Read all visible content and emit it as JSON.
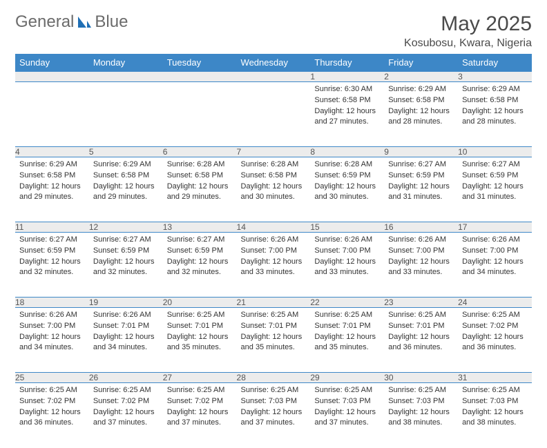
{
  "brand": {
    "part1": "General",
    "part2": "Blue"
  },
  "title": "May 2025",
  "location": "Kosubosu, Kwara, Nigeria",
  "colors": {
    "header_bg": "#3d87c7",
    "header_text": "#ffffff",
    "daynum_bg": "#ececec",
    "border": "#3d87c7",
    "logo_accent": "#1f6fb5"
  },
  "day_headers": [
    "Sunday",
    "Monday",
    "Tuesday",
    "Wednesday",
    "Thursday",
    "Friday",
    "Saturday"
  ],
  "first_day_index": 4,
  "days_in_month": 31,
  "cells": {
    "1": {
      "sunrise": "6:30 AM",
      "sunset": "6:58 PM",
      "daylight": "12 hours and 27 minutes."
    },
    "2": {
      "sunrise": "6:29 AM",
      "sunset": "6:58 PM",
      "daylight": "12 hours and 28 minutes."
    },
    "3": {
      "sunrise": "6:29 AM",
      "sunset": "6:58 PM",
      "daylight": "12 hours and 28 minutes."
    },
    "4": {
      "sunrise": "6:29 AM",
      "sunset": "6:58 PM",
      "daylight": "12 hours and 29 minutes."
    },
    "5": {
      "sunrise": "6:29 AM",
      "sunset": "6:58 PM",
      "daylight": "12 hours and 29 minutes."
    },
    "6": {
      "sunrise": "6:28 AM",
      "sunset": "6:58 PM",
      "daylight": "12 hours and 29 minutes."
    },
    "7": {
      "sunrise": "6:28 AM",
      "sunset": "6:58 PM",
      "daylight": "12 hours and 30 minutes."
    },
    "8": {
      "sunrise": "6:28 AM",
      "sunset": "6:59 PM",
      "daylight": "12 hours and 30 minutes."
    },
    "9": {
      "sunrise": "6:27 AM",
      "sunset": "6:59 PM",
      "daylight": "12 hours and 31 minutes."
    },
    "10": {
      "sunrise": "6:27 AM",
      "sunset": "6:59 PM",
      "daylight": "12 hours and 31 minutes."
    },
    "11": {
      "sunrise": "6:27 AM",
      "sunset": "6:59 PM",
      "daylight": "12 hours and 32 minutes."
    },
    "12": {
      "sunrise": "6:27 AM",
      "sunset": "6:59 PM",
      "daylight": "12 hours and 32 minutes."
    },
    "13": {
      "sunrise": "6:27 AM",
      "sunset": "6:59 PM",
      "daylight": "12 hours and 32 minutes."
    },
    "14": {
      "sunrise": "6:26 AM",
      "sunset": "7:00 PM",
      "daylight": "12 hours and 33 minutes."
    },
    "15": {
      "sunrise": "6:26 AM",
      "sunset": "7:00 PM",
      "daylight": "12 hours and 33 minutes."
    },
    "16": {
      "sunrise": "6:26 AM",
      "sunset": "7:00 PM",
      "daylight": "12 hours and 33 minutes."
    },
    "17": {
      "sunrise": "6:26 AM",
      "sunset": "7:00 PM",
      "daylight": "12 hours and 34 minutes."
    },
    "18": {
      "sunrise": "6:26 AM",
      "sunset": "7:00 PM",
      "daylight": "12 hours and 34 minutes."
    },
    "19": {
      "sunrise": "6:26 AM",
      "sunset": "7:01 PM",
      "daylight": "12 hours and 34 minutes."
    },
    "20": {
      "sunrise": "6:25 AM",
      "sunset": "7:01 PM",
      "daylight": "12 hours and 35 minutes."
    },
    "21": {
      "sunrise": "6:25 AM",
      "sunset": "7:01 PM",
      "daylight": "12 hours and 35 minutes."
    },
    "22": {
      "sunrise": "6:25 AM",
      "sunset": "7:01 PM",
      "daylight": "12 hours and 35 minutes."
    },
    "23": {
      "sunrise": "6:25 AM",
      "sunset": "7:01 PM",
      "daylight": "12 hours and 36 minutes."
    },
    "24": {
      "sunrise": "6:25 AM",
      "sunset": "7:02 PM",
      "daylight": "12 hours and 36 minutes."
    },
    "25": {
      "sunrise": "6:25 AM",
      "sunset": "7:02 PM",
      "daylight": "12 hours and 36 minutes."
    },
    "26": {
      "sunrise": "6:25 AM",
      "sunset": "7:02 PM",
      "daylight": "12 hours and 37 minutes."
    },
    "27": {
      "sunrise": "6:25 AM",
      "sunset": "7:02 PM",
      "daylight": "12 hours and 37 minutes."
    },
    "28": {
      "sunrise": "6:25 AM",
      "sunset": "7:03 PM",
      "daylight": "12 hours and 37 minutes."
    },
    "29": {
      "sunrise": "6:25 AM",
      "sunset": "7:03 PM",
      "daylight": "12 hours and 37 minutes."
    },
    "30": {
      "sunrise": "6:25 AM",
      "sunset": "7:03 PM",
      "daylight": "12 hours and 38 minutes."
    },
    "31": {
      "sunrise": "6:25 AM",
      "sunset": "7:03 PM",
      "daylight": "12 hours and 38 minutes."
    }
  },
  "labels": {
    "sunrise": "Sunrise:",
    "sunset": "Sunset:",
    "daylight": "Daylight:"
  }
}
